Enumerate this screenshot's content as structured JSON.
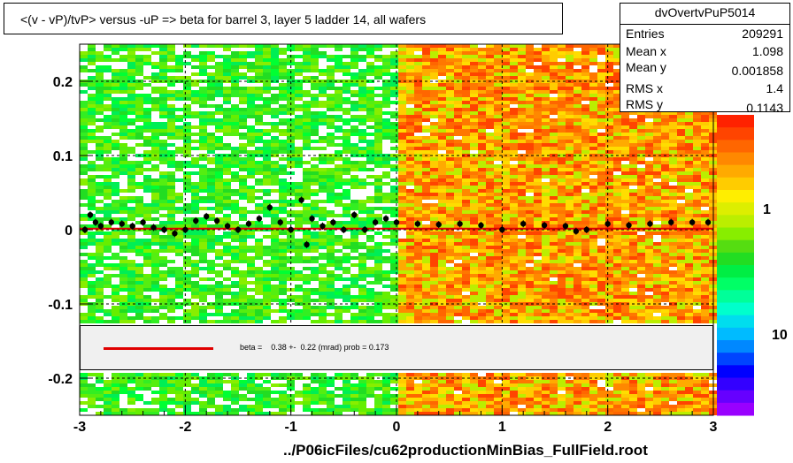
{
  "title": "<(v - vP)/tvP> versus  -uP => beta for barrel 3, layer 5 ladder 14, all wafers",
  "stats": {
    "name": "dvOvertvPuP5014",
    "rows": [
      {
        "label": "Entries",
        "value": "209291"
      },
      {
        "label": "Mean x",
        "value": "1.098"
      },
      {
        "label": "Mean y",
        "value": "0.001858"
      },
      {
        "label": "RMS x",
        "value": "1.4"
      },
      {
        "label": "RMS y",
        "value": "0.1143"
      }
    ]
  },
  "legend": {
    "fit_text": "beta =    0.38 +-  0.22 (mrad) prob = 0.173",
    "line_color": "#e00000"
  },
  "x_axis_title": "../P06icFiles/cu62productionMinBias_FullField.root",
  "colorbar": {
    "labels": [
      "1",
      "10"
    ],
    "colors": [
      "#9900ff",
      "#6600ff",
      "#3300ff",
      "#0000ff",
      "#0044ff",
      "#0088ff",
      "#00bbff",
      "#00ddee",
      "#00ffcc",
      "#00ff99",
      "#00ff66",
      "#00ee44",
      "#22dd22",
      "#55dd11",
      "#88ee00",
      "#bbee00",
      "#ddee00",
      "#ffee00",
      "#ffcc00",
      "#ffaa00",
      "#ff8800",
      "#ff6600",
      "#ff4400",
      "#ff2200"
    ]
  },
  "chart_data": {
    "type": "heatmap",
    "xlim": [
      -3,
      3
    ],
    "ylim": [
      -0.25,
      0.25
    ],
    "xticks": [
      -3,
      -2,
      -1,
      0,
      1,
      2,
      3
    ],
    "yticks": [
      0.2,
      0.1,
      0,
      -0.1,
      -0.2
    ],
    "xtick_labels": [
      "-3",
      "-2",
      "-1",
      "0",
      "1",
      "2",
      "3"
    ],
    "ytick_labels": [
      "0.2",
      "0.1",
      "0",
      "-0.1",
      "-0.2"
    ],
    "grid": true,
    "legend_placement": "bottom-inside",
    "profile_points": [
      {
        "x": -2.95,
        "y": 0.0
      },
      {
        "x": -2.9,
        "y": 0.02
      },
      {
        "x": -2.85,
        "y": 0.01
      },
      {
        "x": -2.8,
        "y": 0.005
      },
      {
        "x": -2.7,
        "y": 0.01
      },
      {
        "x": -2.6,
        "y": 0.008
      },
      {
        "x": -2.5,
        "y": 0.005
      },
      {
        "x": -2.4,
        "y": 0.01
      },
      {
        "x": -2.3,
        "y": 0.003
      },
      {
        "x": -2.2,
        "y": 0.0
      },
      {
        "x": -2.1,
        "y": -0.005
      },
      {
        "x": -2.0,
        "y": 0.0
      },
      {
        "x": -1.9,
        "y": 0.012
      },
      {
        "x": -1.8,
        "y": 0.018
      },
      {
        "x": -1.7,
        "y": 0.012
      },
      {
        "x": -1.6,
        "y": 0.005
      },
      {
        "x": -1.5,
        "y": 0.0
      },
      {
        "x": -1.4,
        "y": 0.008
      },
      {
        "x": -1.3,
        "y": 0.015
      },
      {
        "x": -1.2,
        "y": 0.03
      },
      {
        "x": -1.1,
        "y": 0.01
      },
      {
        "x": -1.0,
        "y": 0.0
      },
      {
        "x": -0.9,
        "y": 0.04
      },
      {
        "x": -0.85,
        "y": -0.02
      },
      {
        "x": -0.8,
        "y": 0.015
      },
      {
        "x": -0.7,
        "y": 0.005
      },
      {
        "x": -0.6,
        "y": 0.01
      },
      {
        "x": -0.5,
        "y": 0.0
      },
      {
        "x": -0.4,
        "y": 0.02
      },
      {
        "x": -0.3,
        "y": 0.0
      },
      {
        "x": -0.2,
        "y": 0.01
      },
      {
        "x": -0.1,
        "y": 0.015
      },
      {
        "x": 0.0,
        "y": 0.01
      },
      {
        "x": 0.2,
        "y": 0.008
      },
      {
        "x": 0.4,
        "y": 0.007
      },
      {
        "x": 0.6,
        "y": 0.008
      },
      {
        "x": 0.8,
        "y": 0.006
      },
      {
        "x": 1.0,
        "y": 0.0
      },
      {
        "x": 1.2,
        "y": 0.008
      },
      {
        "x": 1.4,
        "y": 0.006
      },
      {
        "x": 1.6,
        "y": 0.005
      },
      {
        "x": 1.7,
        "y": -0.002
      },
      {
        "x": 1.8,
        "y": 0.0
      },
      {
        "x": 2.0,
        "y": 0.008
      },
      {
        "x": 2.2,
        "y": 0.006
      },
      {
        "x": 2.4,
        "y": 0.008
      },
      {
        "x": 2.6,
        "y": 0.01
      },
      {
        "x": 2.8,
        "y": 0.01
      },
      {
        "x": 2.95,
        "y": 0.01
      }
    ],
    "fit_line": {
      "x": [
        -3,
        3
      ],
      "y": [
        0.0015,
        0.0015
      ]
    }
  }
}
